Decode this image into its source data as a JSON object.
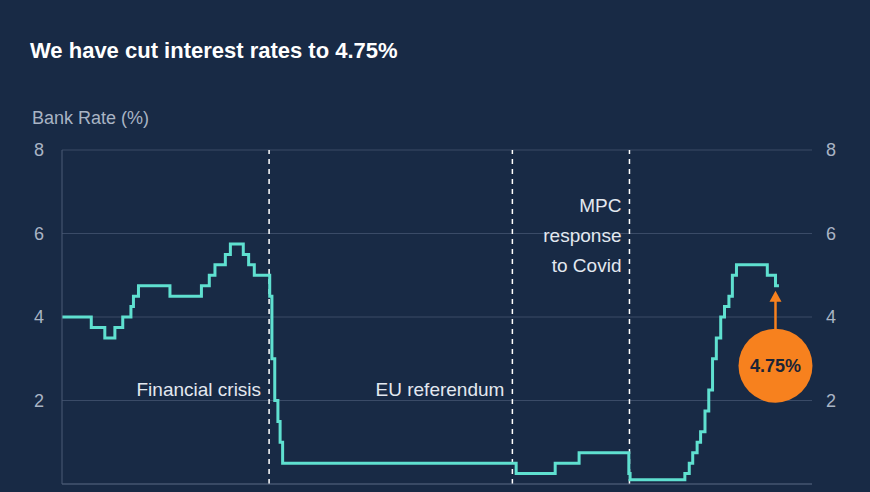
{
  "chart_data": {
    "type": "line",
    "title": "We have cut interest rates to 4.75%",
    "y_label": "Bank Rate (%)",
    "x": [
      2002.17,
      2003.1,
      2003.53,
      2003.85,
      2004.1,
      2004.36,
      2004.44,
      2004.6,
      2005.6,
      2006.6,
      2006.85,
      2007.03,
      2007.36,
      2007.52,
      2007.93,
      2008.1,
      2008.28,
      2008.77,
      2008.84,
      2008.93,
      2009.03,
      2009.1,
      2009.18,
      2016.6,
      2017.84,
      2018.6,
      2020.18,
      2020.22,
      2021.96,
      2022.1,
      2022.21,
      2022.35,
      2022.46,
      2022.6,
      2022.72,
      2022.84,
      2022.96,
      2023.1,
      2023.22,
      2023.36,
      2023.47,
      2023.6,
      2024.58,
      2024.84,
      2024.95
    ],
    "values": [
      4,
      3.75,
      3.5,
      3.75,
      4,
      4.25,
      4.5,
      4.75,
      4.5,
      4.75,
      5,
      5.25,
      5.5,
      5.75,
      5.5,
      5.25,
      5,
      4.5,
      3,
      2,
      1.5,
      1,
      0.5,
      0.25,
      0.5,
      0.75,
      0.25,
      0.1,
      0.25,
      0.5,
      0.75,
      1,
      1.25,
      1.75,
      2.25,
      3,
      3.5,
      4,
      4.25,
      4.5,
      5,
      5.25,
      5,
      4.75,
      4.75
    ],
    "color": "#5fe0d0",
    "line_style": "step",
    "xlim": [
      2002.17,
      2026
    ],
    "ylim": [
      0,
      8
    ],
    "yticks": [
      2,
      4,
      6,
      8
    ],
    "grid": true,
    "tick_labels": "y",
    "events": [
      {
        "x": 2008.75,
        "text": "Financial crisis"
      },
      {
        "x": 2016.48,
        "text": "EU referendum"
      },
      {
        "x": 2020.2,
        "text": "MPC response to Covid"
      }
    ],
    "callout": {
      "x": 2024.84,
      "y": 4.75,
      "label": "4.75%"
    }
  }
}
